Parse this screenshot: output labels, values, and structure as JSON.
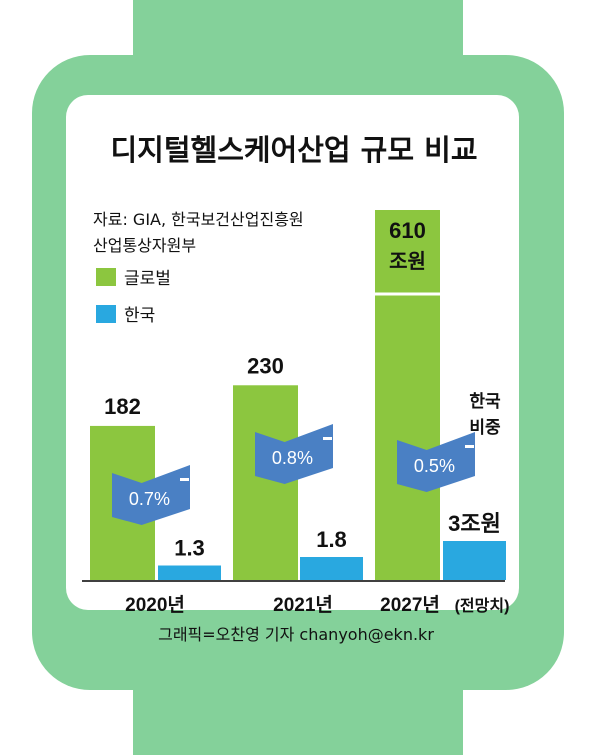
{
  "colors": {
    "watch": "#84d19a",
    "global": "#8cc63f",
    "korea": "#29a8e0",
    "share_tag": "#4a80c4",
    "baseline": "#000000"
  },
  "title": "디지털헬스케어산업 규모 비교",
  "source": [
    "자료: GIA, 한국보건산업진흥원",
    "산업통상자원부"
  ],
  "legend": [
    {
      "label": "글로벌",
      "color": "#8cc63f"
    },
    {
      "label": "한국",
      "color": "#29a8e0"
    }
  ],
  "share_caption": [
    "한국",
    "비중"
  ],
  "credit": "그래픽=오찬영 기자 chanyoh@ekn.kr",
  "chart_data": {
    "type": "bar",
    "title": "디지털헬스케어산업 규모 비교",
    "categories": [
      "2020년",
      "2021년",
      "2027년"
    ],
    "category_note": [
      "",
      "",
      "(전망치)"
    ],
    "series": [
      {
        "name": "글로벌",
        "values": [
          182,
          230,
          610
        ],
        "labels": [
          "182",
          "230",
          "610\n조원"
        ]
      },
      {
        "name": "한국",
        "values": [
          1.3,
          1.8,
          3
        ],
        "labels": [
          "1.3",
          "1.8",
          "3조원"
        ]
      }
    ],
    "korea_share": [
      "0.7%",
      "0.8%",
      "0.5%"
    ],
    "legend_placement": "top-left",
    "grid": false
  }
}
